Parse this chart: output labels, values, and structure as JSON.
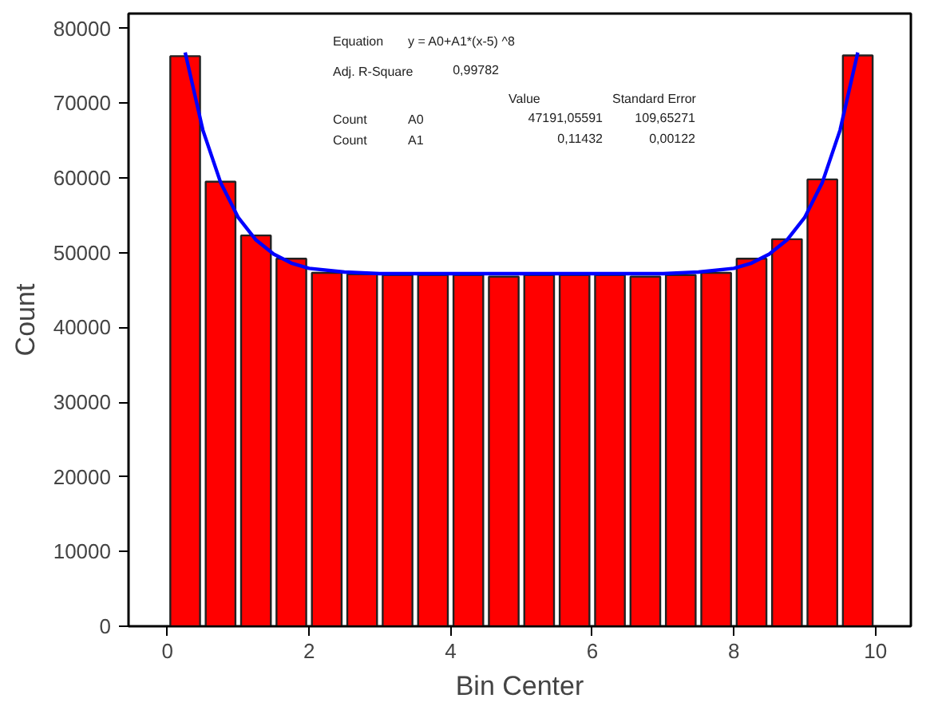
{
  "chart_data": {
    "type": "histogram",
    "xlabel": "Bin Center",
    "ylabel": "Count",
    "bins": [
      0,
      0.5,
      1,
      1.5,
      2,
      2.5,
      3,
      3.5,
      4,
      4.5,
      5,
      5.5,
      6,
      6.5,
      7,
      7.5,
      8,
      8.5,
      9,
      9.5,
      10
    ],
    "values": [
      76300,
      59500,
      52300,
      49200,
      47300,
      47100,
      47000,
      47000,
      47000,
      46800,
      47000,
      47000,
      47000,
      46800,
      47000,
      47300,
      49200,
      51800,
      59800,
      76400
    ],
    "color": "#ff0000",
    "series": [
      {
        "type": "line",
        "color": "#0000ff",
        "x": [
          0.25,
          0.5,
          0.75,
          1,
          1.25,
          1.5,
          1.75,
          2,
          2.5,
          3,
          4,
          5,
          6,
          7,
          7.5,
          8,
          8.25,
          8.5,
          8.75,
          9,
          9.25,
          9.5,
          9.75
        ],
        "values": [
          76800,
          66400,
          59400,
          54700,
          51700,
          49800,
          48600,
          47900,
          47400,
          47200,
          47200,
          47200,
          47200,
          47200,
          47400,
          47900,
          48600,
          49800,
          51700,
          54700,
          59400,
          66400,
          76800
        ]
      }
    ],
    "xlim": [
      -0.55,
      10.5
    ],
    "ylim": [
      0,
      82000
    ],
    "xticks": [
      0,
      2,
      4,
      6,
      8,
      10
    ],
    "yticks": [
      0,
      10000,
      20000,
      30000,
      40000,
      50000,
      60000,
      70000,
      80000
    ],
    "grid": false,
    "annotations": [
      "Equation",
      "y = A0+A1*(x-5) ^8",
      "Adj. R-Square",
      "0,99782",
      "Value",
      "Standard Error",
      "Count",
      "A0",
      "47191,05591",
      "109,65271",
      "Count",
      "A1",
      "0,11432",
      "0,00122"
    ]
  }
}
